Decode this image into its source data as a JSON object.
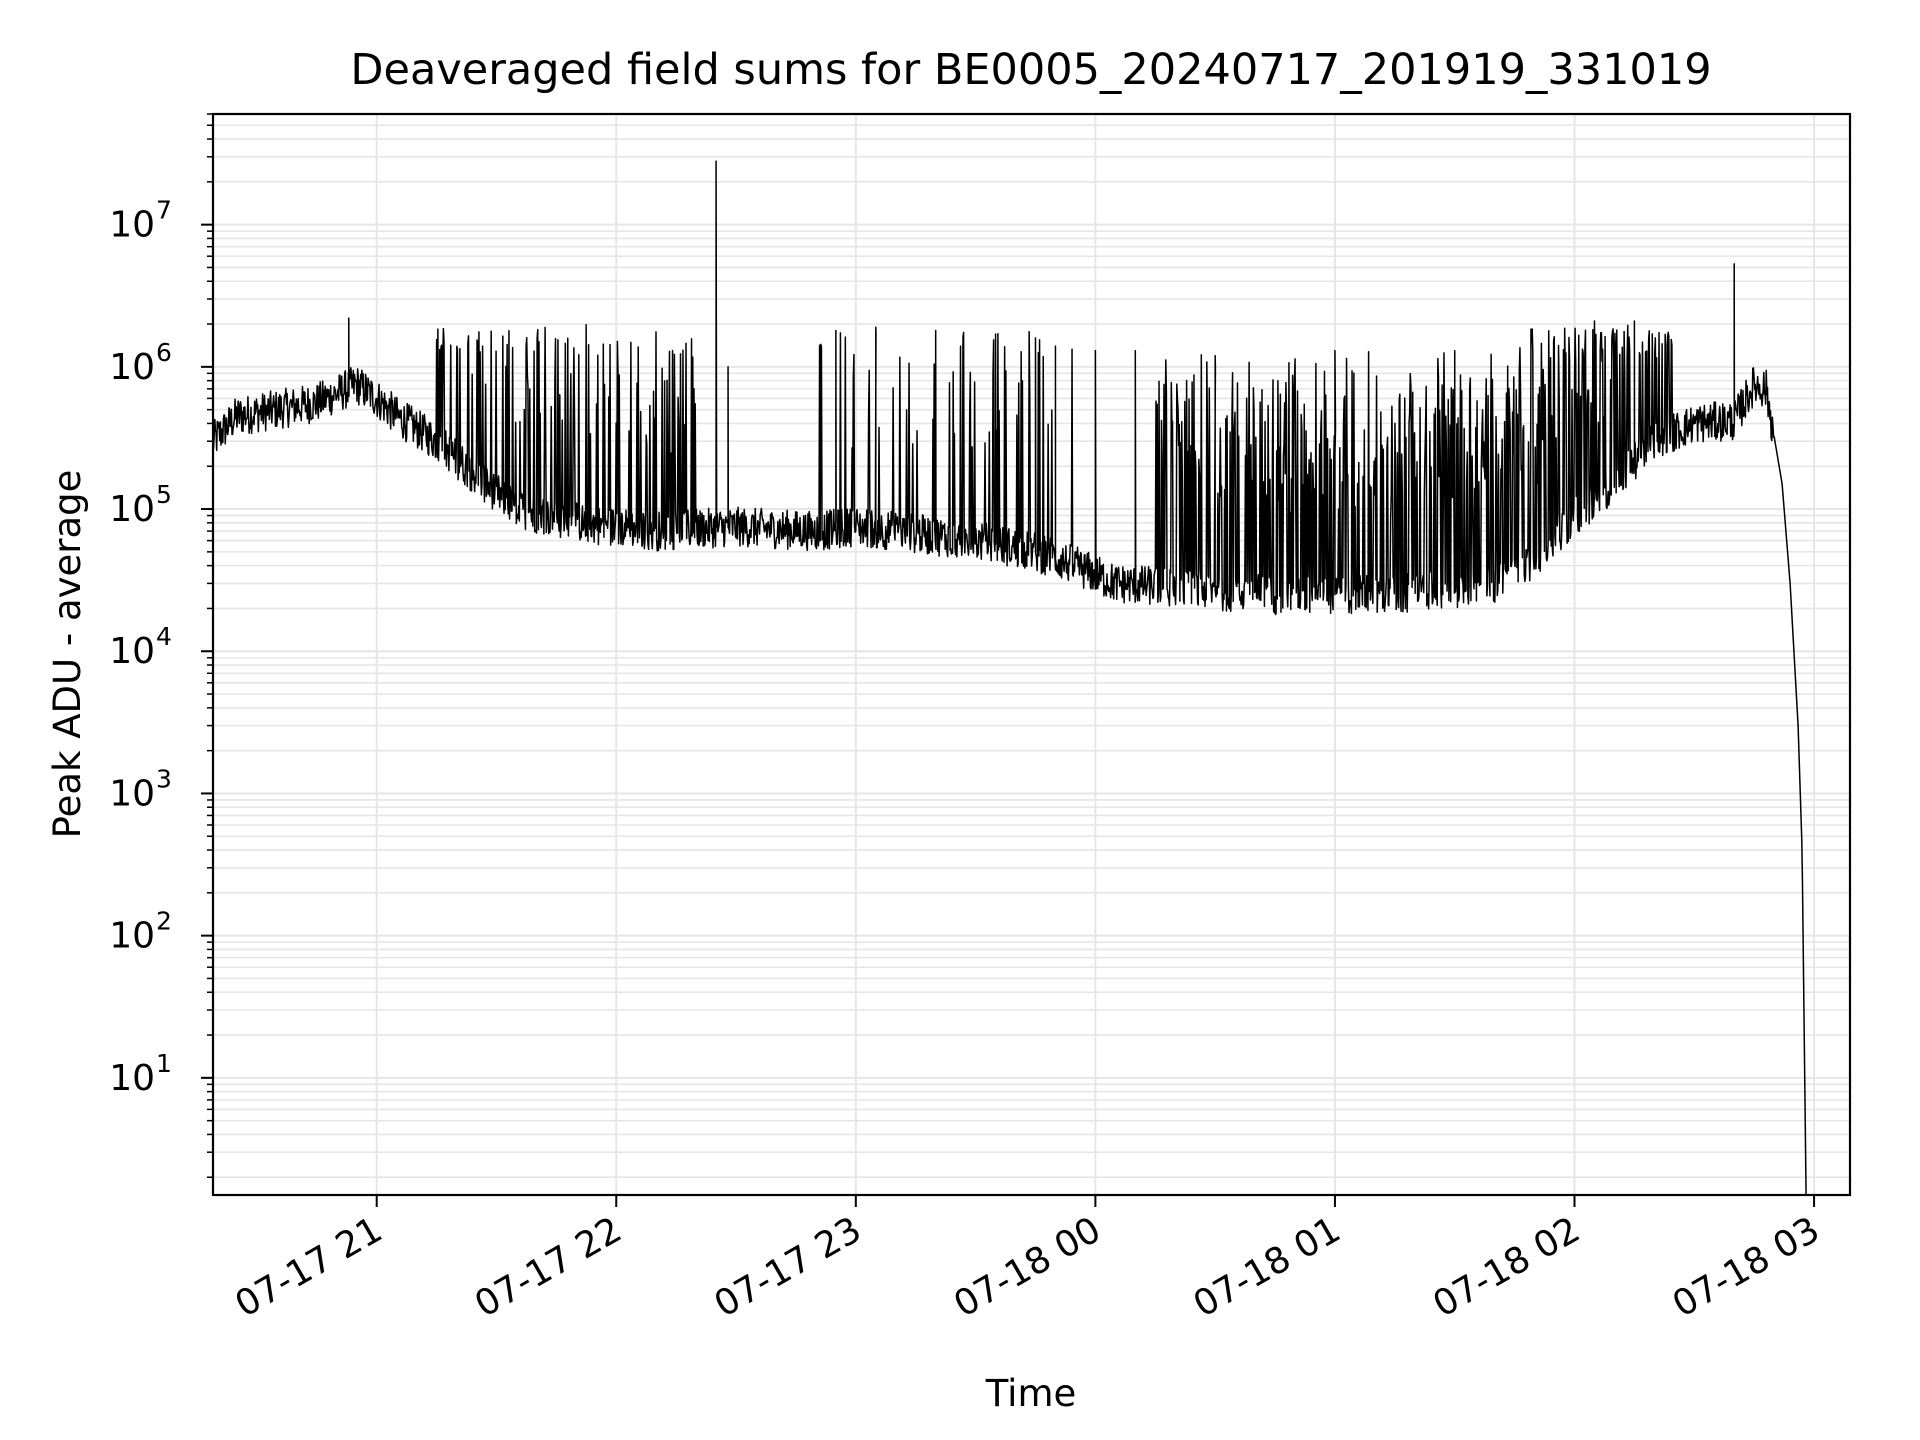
{
  "chart_data": {
    "type": "line",
    "title": "Deaveraged field sums for BE0005_20240717_201919_331019",
    "xlabel": "Time",
    "ylabel": "Peak ADU - average",
    "yscale": "log",
    "ylim": [
      1.5,
      60000000
    ],
    "xlim": [
      "2024-07-17 20:19",
      "2024-07-18 03:09"
    ],
    "grid": true,
    "line_color": "#000000",
    "grid_color": "#e6e6e6",
    "x_ticks": [
      {
        "value": "2024-07-17 21:00",
        "label": "07-17 21"
      },
      {
        "value": "2024-07-17 22:00",
        "label": "07-17 22"
      },
      {
        "value": "2024-07-17 23:00",
        "label": "07-17 23"
      },
      {
        "value": "2024-07-18 00:00",
        "label": "07-18 00"
      },
      {
        "value": "2024-07-18 01:00",
        "label": "07-18 01"
      },
      {
        "value": "2024-07-18 02:00",
        "label": "07-18 02"
      },
      {
        "value": "2024-07-18 03:00",
        "label": "07-18 03"
      }
    ],
    "y_ticks": [
      {
        "value": 10,
        "base": "10",
        "exp": "1"
      },
      {
        "value": 100,
        "base": "10",
        "exp": "2"
      },
      {
        "value": 1000,
        "base": "10",
        "exp": "3"
      },
      {
        "value": 10000,
        "base": "10",
        "exp": "4"
      },
      {
        "value": 100000,
        "base": "10",
        "exp": "5"
      },
      {
        "value": 1000000,
        "base": "10",
        "exp": "6"
      },
      {
        "value": 10000000,
        "base": "10",
        "exp": "7"
      }
    ],
    "series": [
      {
        "baseline": [
          [
            "2024-07-17 20:19",
            300000
          ],
          [
            "2024-07-17 20:25",
            450000
          ],
          [
            "2024-07-17 20:35",
            500000
          ],
          [
            "2024-07-17 20:45",
            560000
          ],
          [
            "2024-07-17 20:55",
            750000
          ],
          [
            "2024-07-17 21:00",
            600000
          ],
          [
            "2024-07-17 21:05",
            450000
          ],
          [
            "2024-07-17 21:15",
            300000
          ],
          [
            "2024-07-17 21:25",
            170000
          ],
          [
            "2024-07-17 21:35",
            100000
          ],
          [
            "2024-07-17 21:50",
            80000
          ],
          [
            "2024-07-17 22:10",
            70000
          ],
          [
            "2024-07-17 22:30",
            75000
          ],
          [
            "2024-07-17 22:50",
            70000
          ],
          [
            "2024-07-17 23:00",
            75000
          ],
          [
            "2024-07-17 23:10",
            70000
          ],
          [
            "2024-07-17 23:30",
            60000
          ],
          [
            "2024-07-17 23:45",
            50000
          ],
          [
            "2024-07-17 23:55",
            40000
          ],
          [
            "2024-07-18 00:05",
            30000
          ],
          [
            "2024-07-18 00:20",
            28000
          ],
          [
            "2024-07-18 00:45",
            25000
          ],
          [
            "2024-07-18 01:15",
            25000
          ],
          [
            "2024-07-18 01:40",
            30000
          ],
          [
            "2024-07-18 01:50",
            45000
          ],
          [
            "2024-07-18 02:00",
            90000
          ],
          [
            "2024-07-18 02:10",
            150000
          ],
          [
            "2024-07-18 02:20",
            300000
          ],
          [
            "2024-07-18 02:30",
            400000
          ],
          [
            "2024-07-18 02:40",
            420000
          ],
          [
            "2024-07-18 02:45",
            750000
          ],
          [
            "2024-07-18 02:48",
            700000
          ],
          [
            "2024-07-18 02:52",
            150000
          ],
          [
            "2024-07-18 02:54",
            30000
          ],
          [
            "2024-07-18 02:56",
            3000
          ],
          [
            "2024-07-18 02:57",
            400
          ],
          [
            "2024-07-18 02:58",
            1.5
          ]
        ],
        "spikes": [
          [
            "2024-07-17 20:53",
            2200000
          ],
          [
            "2024-07-17 22:25",
            28000000
          ],
          [
            "2024-07-17 22:28",
            1000000
          ],
          [
            "2024-07-17 22:55",
            1800000
          ],
          [
            "2024-07-17 23:05",
            1900000
          ],
          [
            "2024-07-17 23:20",
            1800000
          ],
          [
            "2024-07-17 23:35",
            1700000
          ],
          [
            "2024-07-17 23:45",
            1600000
          ],
          [
            "2024-07-17 23:50",
            1400000
          ],
          [
            "2024-07-18 00:00",
            1300000
          ],
          [
            "2024-07-18 00:10",
            1300000
          ],
          [
            "2024-07-18 00:30",
            1200000
          ],
          [
            "2024-07-18 01:00",
            1300000
          ],
          [
            "2024-07-18 01:30",
            1300000
          ],
          [
            "2024-07-18 02:05",
            2100000
          ],
          [
            "2024-07-18 02:15",
            2100000
          ],
          [
            "2024-07-18 02:40",
            5300000
          ]
        ],
        "oscillation_bands": [
          [
            "2024-07-17 21:15",
            "2024-07-17 22:20",
            0.45
          ],
          [
            "2024-07-17 22:50",
            "2024-07-17 23:55",
            0.25
          ],
          [
            "2024-07-18 00:15",
            "2024-07-18 01:55",
            0.9
          ],
          [
            "2024-07-18 01:55",
            "2024-07-18 02:25",
            0.7
          ]
        ]
      }
    ]
  }
}
